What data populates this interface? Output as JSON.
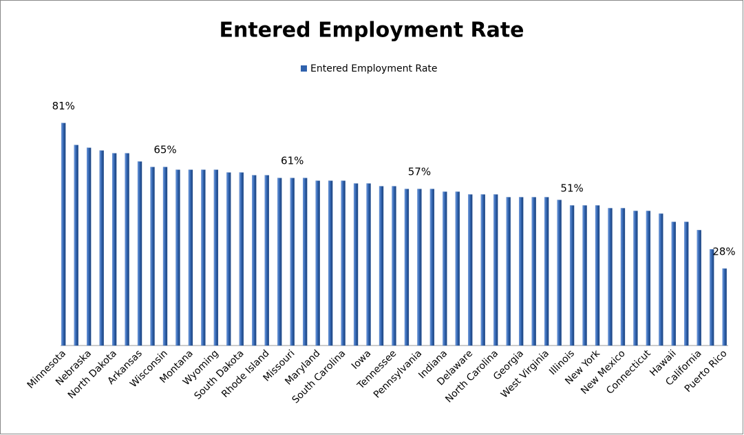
{
  "chart_data": {
    "type": "bar",
    "title": "Entered Employment Rate",
    "series": [
      {
        "name": "Entered Employment Rate",
        "color": "#2f62ad",
        "values": [
          81,
          73,
          72,
          71,
          70,
          70,
          67,
          65,
          65,
          64,
          64,
          64,
          64,
          63,
          63,
          62,
          62,
          61,
          61,
          61,
          60,
          60,
          60,
          59,
          59,
          58,
          58,
          57,
          57,
          57,
          56,
          56,
          55,
          55,
          55,
          54,
          54,
          54,
          54,
          53,
          51,
          51,
          51,
          50,
          50,
          49,
          49,
          48,
          45,
          45,
          42,
          35,
          28
        ],
        "value_labels": [
          "81%",
          null,
          null,
          null,
          null,
          null,
          null,
          null,
          "65%",
          null,
          null,
          null,
          null,
          null,
          null,
          null,
          null,
          null,
          "61%",
          null,
          null,
          null,
          null,
          null,
          null,
          null,
          null,
          null,
          "57%",
          null,
          null,
          null,
          null,
          null,
          null,
          null,
          null,
          null,
          null,
          null,
          "51%",
          null,
          null,
          null,
          null,
          null,
          null,
          null,
          null,
          null,
          null,
          null,
          "28%"
        ]
      }
    ],
    "categories": [
      "Minnesota",
      null,
      "Nebraska",
      null,
      "North Dakota",
      null,
      "Arkansas",
      null,
      "Wisconsin",
      null,
      "Montana",
      null,
      "Wyoming",
      null,
      "South Dakota",
      null,
      "Rhode Island",
      null,
      "Missouri",
      null,
      "Maryland",
      null,
      "South Carolina",
      null,
      "Iowa",
      null,
      "Tennessee",
      null,
      "Pennsylvania",
      null,
      "Indiana",
      null,
      "Delaware",
      null,
      "North Carolina",
      null,
      "Georgia",
      null,
      "West Virginia",
      null,
      "Illinois",
      null,
      "New York",
      null,
      "New Mexico",
      null,
      "Connecticut",
      null,
      "Hawaii",
      null,
      "California",
      null,
      "Puerto Rico"
    ],
    "ylim": [
      0,
      100
    ],
    "legend": "top"
  }
}
